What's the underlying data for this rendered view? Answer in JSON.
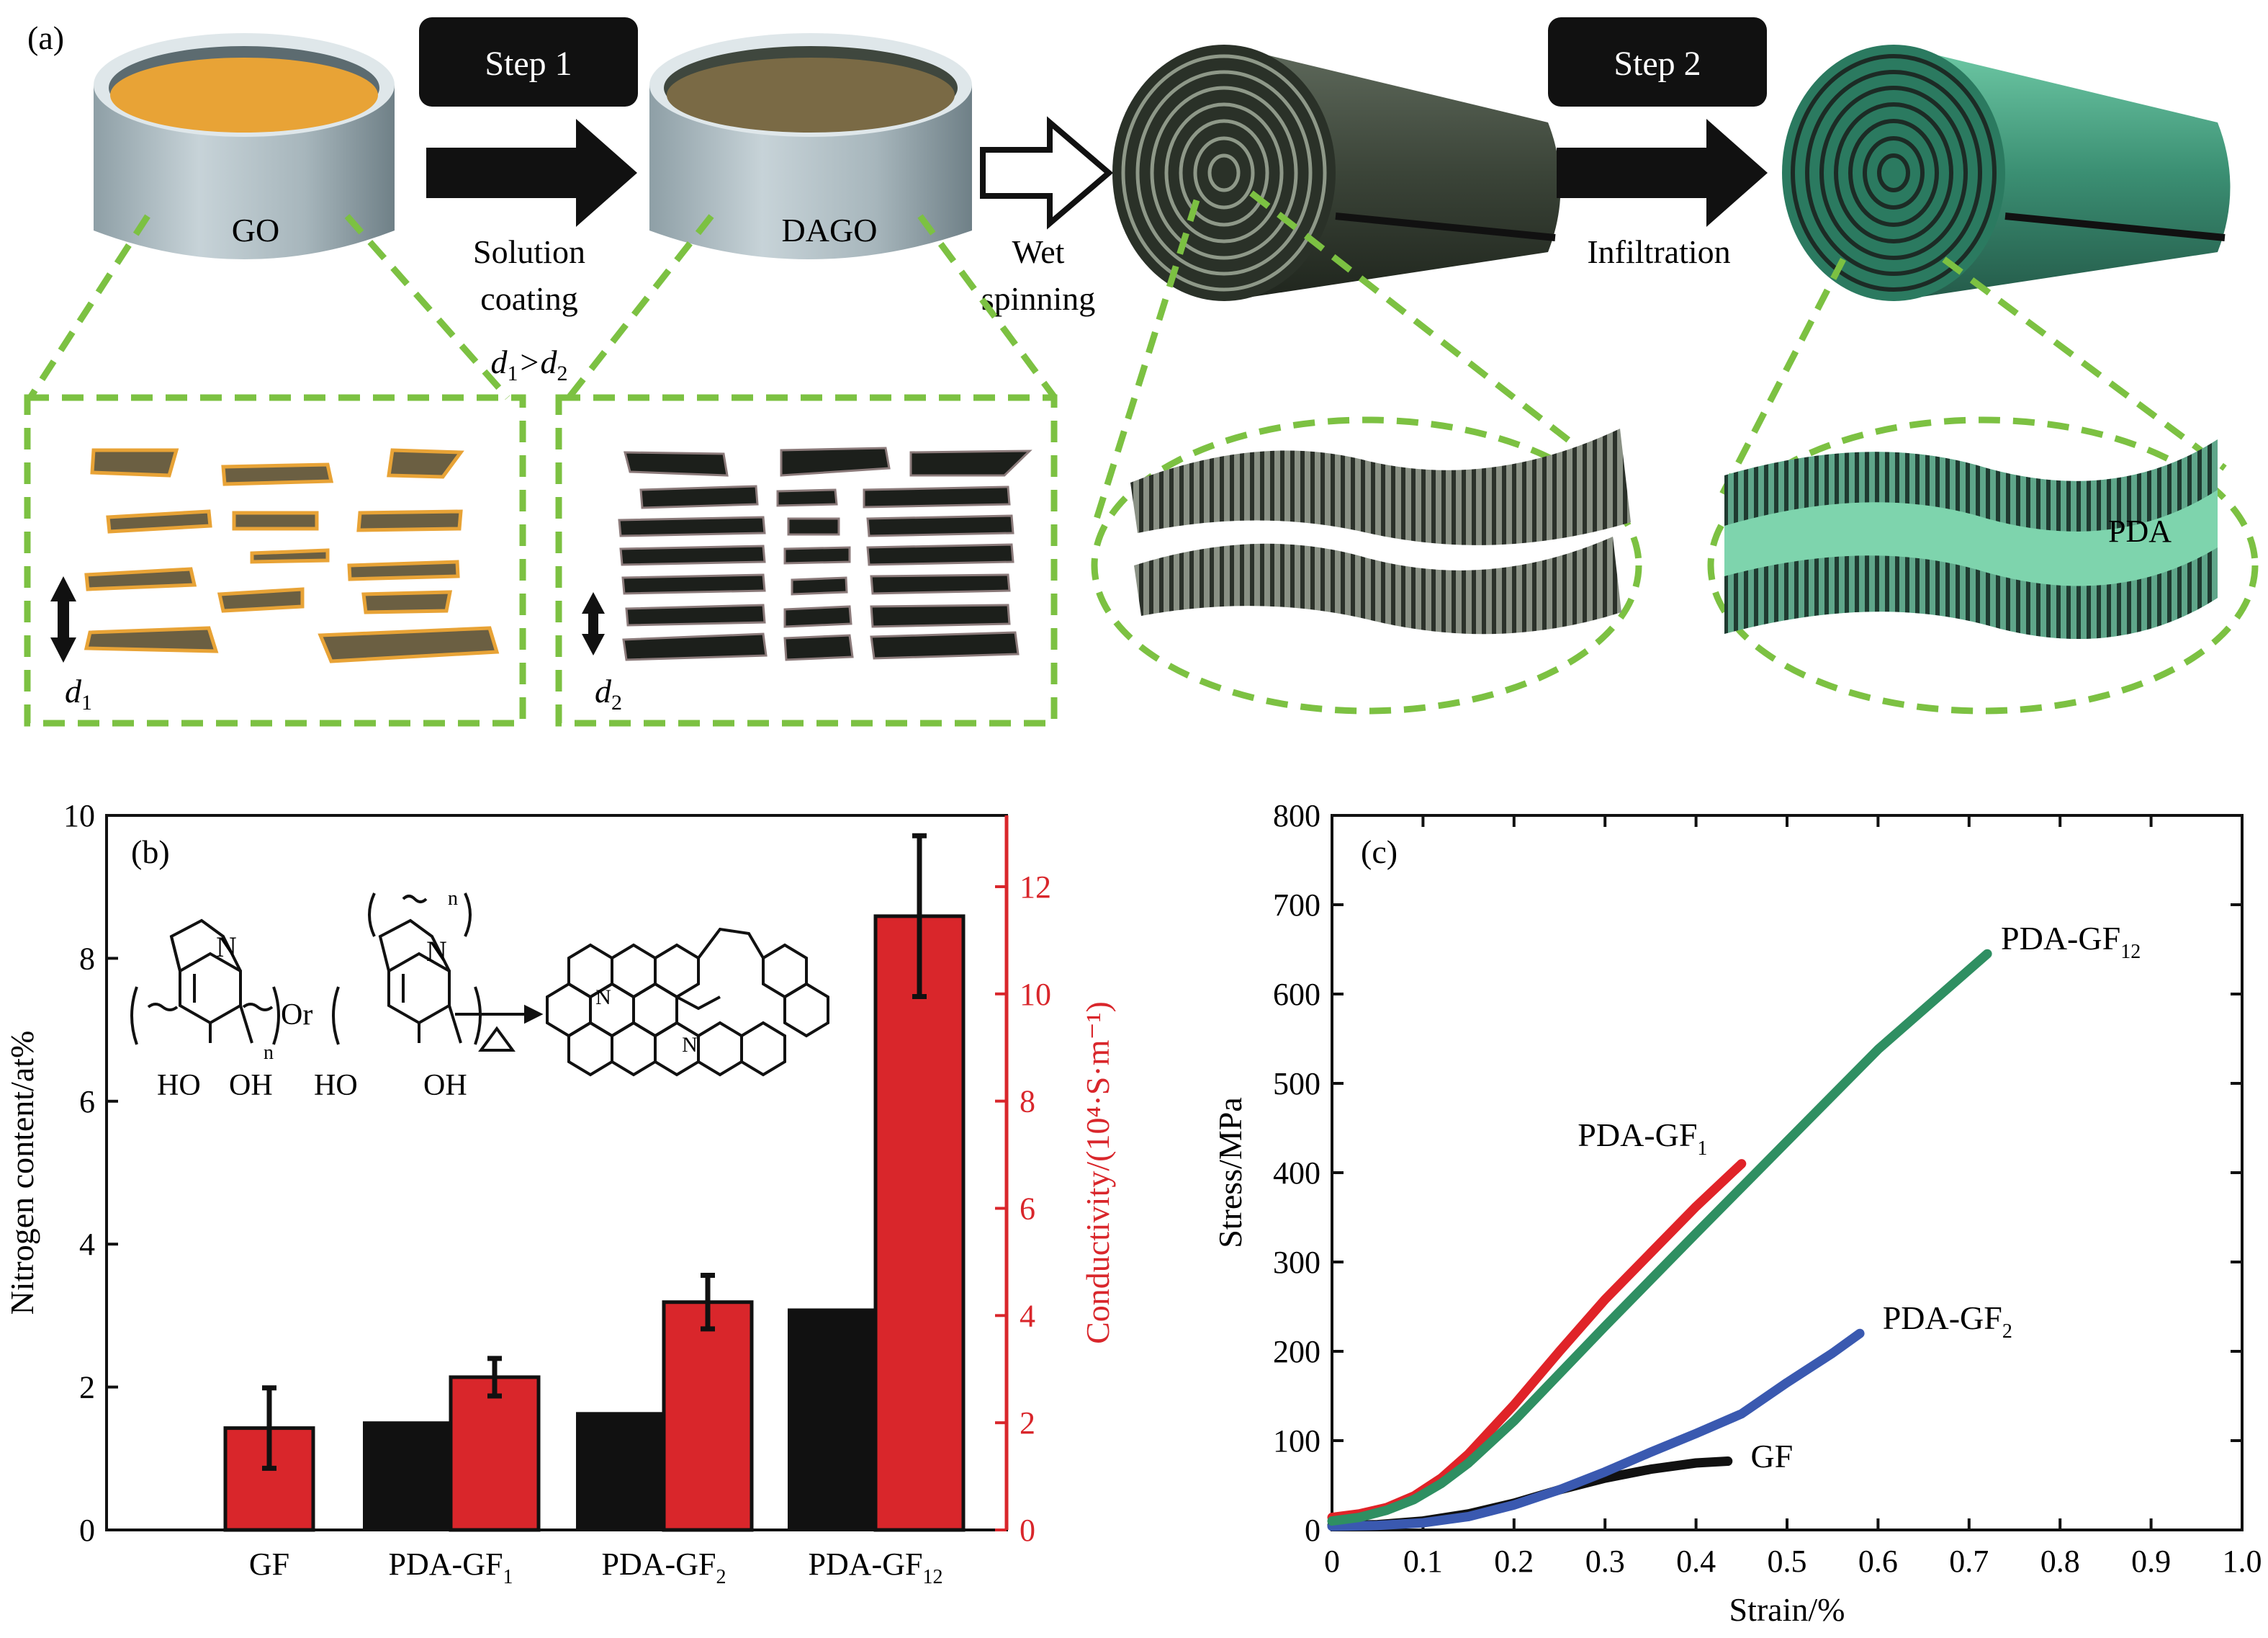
{
  "panel_a": {
    "label": "(a)",
    "step1": "Step 1",
    "step2": "Step 2",
    "go": "GO",
    "dago": "DAGO",
    "solution": "Solution",
    "coating": "coating",
    "d_compare_d1": "d",
    "d_compare_sub1": "1",
    "d_compare_gt": ">d",
    "d_compare_sub2": "2",
    "wet": "Wet",
    "spinning": "spinning",
    "infiltration": "Infiltration",
    "pda": "PDA",
    "d1_label": "d",
    "d1_sub": "1",
    "d2_label": "d",
    "d2_sub": "2",
    "colors": {
      "go_liquid": "#e8a336",
      "dago_liquid": "#7a6a45",
      "dash_green": "#7cc142",
      "pda_green": "#5fbf8f"
    }
  },
  "chart_data": [
    {
      "type": "bar",
      "panel": "(b)",
      "title": "",
      "categories": [
        "GF",
        "PDA-GF1",
        "PDA-GF2",
        "PDA-GF12"
      ],
      "category_labels": [
        {
          "main": "GF",
          "sub": ""
        },
        {
          "main": "PDA-GF",
          "sub": "1"
        },
        {
          "main": "PDA-GF",
          "sub": "2"
        },
        {
          "main": "PDA-GF",
          "sub": "12"
        }
      ],
      "series": [
        {
          "name": "Nitrogen content",
          "axis": "left",
          "color": "#111111",
          "values": [
            null,
            1.52,
            1.65,
            3.1
          ],
          "errors": [
            null,
            null,
            null,
            null
          ]
        },
        {
          "name": "Conductivity",
          "axis": "right",
          "color": "#d9262b",
          "values": [
            1.9,
            2.85,
            4.25,
            11.45
          ],
          "errors": [
            0.75,
            0.35,
            0.5,
            1.5
          ]
        }
      ],
      "ylabel": "Nitrogen content/at%",
      "ylim": [
        0,
        10
      ],
      "yticks": [
        "0",
        "2",
        "4",
        "6",
        "8",
        "10"
      ],
      "y2label": "Conductivity/(10⁴·S·m⁻¹)",
      "y2lim": [
        0,
        13.33
      ],
      "y2ticks": [
        "0",
        "2",
        "4",
        "6",
        "8",
        "10",
        "12"
      ],
      "inset": {
        "n_label": "N",
        "n_label2": "N",
        "n_sub": "n",
        "n_sup": "n",
        "or": "Or",
        "ho1": "HO",
        "oh1": "OH",
        "ho2": "HO",
        "oh2": "OH",
        "n_ring1": "N",
        "n_ring2": "N"
      }
    },
    {
      "type": "line",
      "panel": "(c)",
      "title": "",
      "xlabel": "Strain/%",
      "ylabel": "Stress/MPa",
      "xlim": [
        0,
        1.0
      ],
      "ylim": [
        0,
        800
      ],
      "xticks": [
        "0",
        "0.1",
        "0.2",
        "0.3",
        "0.4",
        "0.5",
        "0.6",
        "0.7",
        "0.8",
        "0.9",
        "1.0"
      ],
      "yticks": [
        "0",
        "100",
        "200",
        "300",
        "400",
        "500",
        "600",
        "700",
        "800"
      ],
      "series": [
        {
          "name": "GF",
          "label_main": "GF",
          "label_sub": "",
          "color": "#111111",
          "x": [
            0,
            0.05,
            0.1,
            0.15,
            0.2,
            0.25,
            0.3,
            0.35,
            0.4,
            0.435
          ],
          "y": [
            5,
            6,
            10,
            18,
            30,
            45,
            58,
            68,
            75,
            77
          ]
        },
        {
          "name": "PDA-GF1",
          "label_main": "PDA-GF",
          "label_sub": "1",
          "color": "#e02328",
          "x": [
            0,
            0.03,
            0.06,
            0.09,
            0.12,
            0.15,
            0.2,
            0.25,
            0.3,
            0.35,
            0.4,
            0.45
          ],
          "y": [
            14,
            18,
            25,
            38,
            58,
            85,
            140,
            200,
            258,
            310,
            362,
            410
          ]
        },
        {
          "name": "PDA-GF2",
          "label_main": "PDA-GF",
          "label_sub": "2",
          "color": "#3a59b0",
          "x": [
            0,
            0.05,
            0.1,
            0.15,
            0.2,
            0.25,
            0.3,
            0.35,
            0.4,
            0.45,
            0.5,
            0.55,
            0.58
          ],
          "y": [
            4,
            5,
            8,
            15,
            28,
            45,
            65,
            87,
            108,
            130,
            165,
            198,
            220
          ]
        },
        {
          "name": "PDA-GF12",
          "label_main": "PDA-GF",
          "label_sub": "12",
          "color": "#2f8f62",
          "x": [
            0,
            0.03,
            0.06,
            0.09,
            0.12,
            0.15,
            0.2,
            0.25,
            0.3,
            0.4,
            0.5,
            0.6,
            0.72
          ],
          "y": [
            10,
            14,
            22,
            34,
            52,
            75,
            122,
            175,
            228,
            332,
            435,
            538,
            645
          ]
        }
      ]
    }
  ]
}
